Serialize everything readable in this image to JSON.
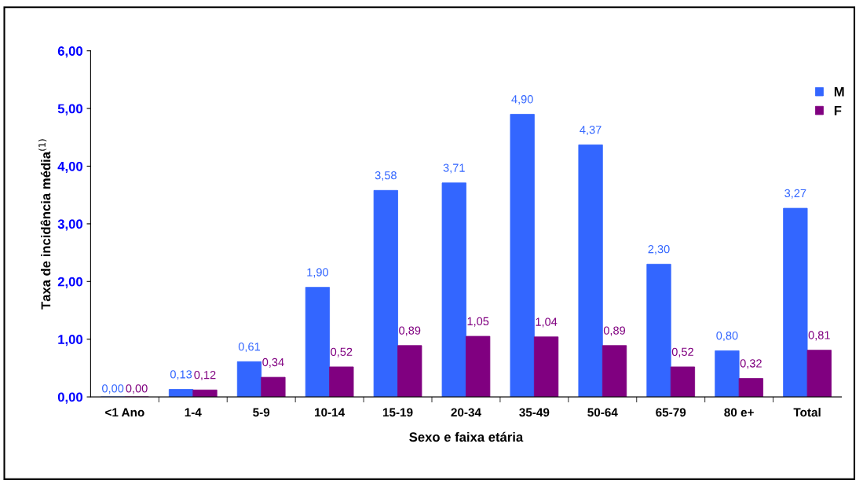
{
  "chart_data": {
    "type": "bar",
    "xlabel": "Sexo e faixa etária",
    "ylabel": "Taxa de incidência média$^{(1)}$",
    "categories": [
      "<1 Ano",
      "1-4",
      "5-9",
      "10-14",
      "15-19",
      "20-34",
      "35-49",
      "50-64",
      "65-79",
      "80 e+",
      "Total"
    ],
    "series": [
      {
        "name": "M",
        "color": "#3366ff",
        "values": [
          0.0,
          0.13,
          0.61,
          1.9,
          3.58,
          3.71,
          4.9,
          4.37,
          2.3,
          0.8,
          3.27
        ],
        "value_labels": [
          "0,00",
          "0,13",
          "0,61",
          "1,90",
          "3,58",
          "3,71",
          "4,90",
          "4,37",
          "2,30",
          "0,80",
          "3,27"
        ]
      },
      {
        "name": "F",
        "color": "#800080",
        "values": [
          0.0,
          0.12,
          0.34,
          0.52,
          0.89,
          1.05,
          1.04,
          0.89,
          0.52,
          0.32,
          0.81
        ],
        "value_labels": [
          "0,00",
          "0,12",
          "0,34",
          "0,52",
          "0,89",
          "1,05",
          "1,04",
          "0,89",
          "0,52",
          "0,32",
          "0,81"
        ]
      }
    ],
    "ylim": [
      0,
      6
    ],
    "yticks": [
      {
        "value": 0,
        "label": "0,00"
      },
      {
        "value": 1,
        "label": "1,00"
      },
      {
        "value": 2,
        "label": "2,00"
      },
      {
        "value": 3,
        "label": "3,00"
      },
      {
        "value": 4,
        "label": "4,00"
      },
      {
        "value": 5,
        "label": "5,00"
      },
      {
        "value": 6,
        "label": "6,00"
      }
    ],
    "grid": false,
    "legend": "top right"
  }
}
